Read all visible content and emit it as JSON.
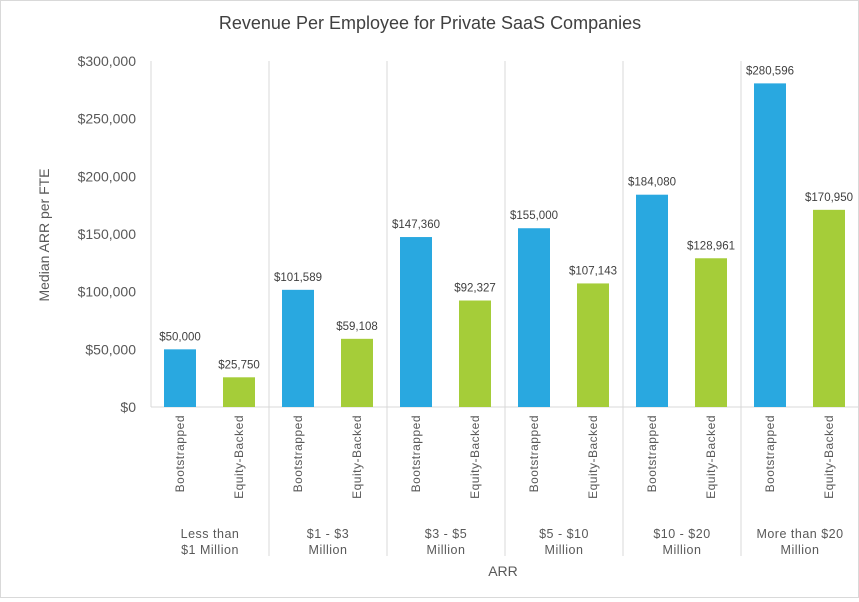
{
  "chart_data": {
    "type": "bar",
    "title": "Revenue Per Employee for Private SaaS Companies",
    "xlabel": "ARR",
    "ylabel": "Median ARR per FTE",
    "ylim": [
      0,
      300000
    ],
    "yticks": [
      "$0",
      "$50,000",
      "$100,000",
      "$150,000",
      "$200,000",
      "$250,000",
      "$300,000"
    ],
    "ytick_values": [
      0,
      50000,
      100000,
      150000,
      200000,
      250000,
      300000
    ],
    "grid": false,
    "legend": "none",
    "colors": {
      "Bootstrapped": "#29a8e0",
      "Equity-Backed": "#a5cd39"
    },
    "groups": [
      {
        "label_lines": [
          "Less than",
          "$1 Million"
        ],
        "bars": [
          {
            "category": "Bootstrapped",
            "value": 50000,
            "label": "$50,000"
          },
          {
            "category": "Equity-Backed",
            "value": 25750,
            "label": "$25,750"
          }
        ]
      },
      {
        "label_lines": [
          "$1 - $3",
          "Million"
        ],
        "bars": [
          {
            "category": "Bootstrapped",
            "value": 101589,
            "label": "$101,589"
          },
          {
            "category": "Equity-Backed",
            "value": 59108,
            "label": "$59,108"
          }
        ]
      },
      {
        "label_lines": [
          "$3 - $5",
          "Million"
        ],
        "bars": [
          {
            "category": "Bootstrapped",
            "value": 147360,
            "label": "$147,360"
          },
          {
            "category": "Equity-Backed",
            "value": 92327,
            "label": "$92,327"
          }
        ]
      },
      {
        "label_lines": [
          "$5 - $10",
          "Million"
        ],
        "bars": [
          {
            "category": "Bootstrapped",
            "value": 155000,
            "label": "$155,000"
          },
          {
            "category": "Equity-Backed",
            "value": 107143,
            "label": "$107,143"
          }
        ]
      },
      {
        "label_lines": [
          "$10 - $20",
          "Million"
        ],
        "bars": [
          {
            "category": "Bootstrapped",
            "value": 184080,
            "label": "$184,080"
          },
          {
            "category": "Equity-Backed",
            "value": 128961,
            "label": "$128,961"
          }
        ]
      },
      {
        "label_lines": [
          "More than $20",
          "Million"
        ],
        "bars": [
          {
            "category": "Bootstrapped",
            "value": 280596,
            "label": "$280,596"
          },
          {
            "category": "Equity-Backed",
            "value": 170950,
            "label": "$170,950"
          }
        ]
      }
    ]
  }
}
